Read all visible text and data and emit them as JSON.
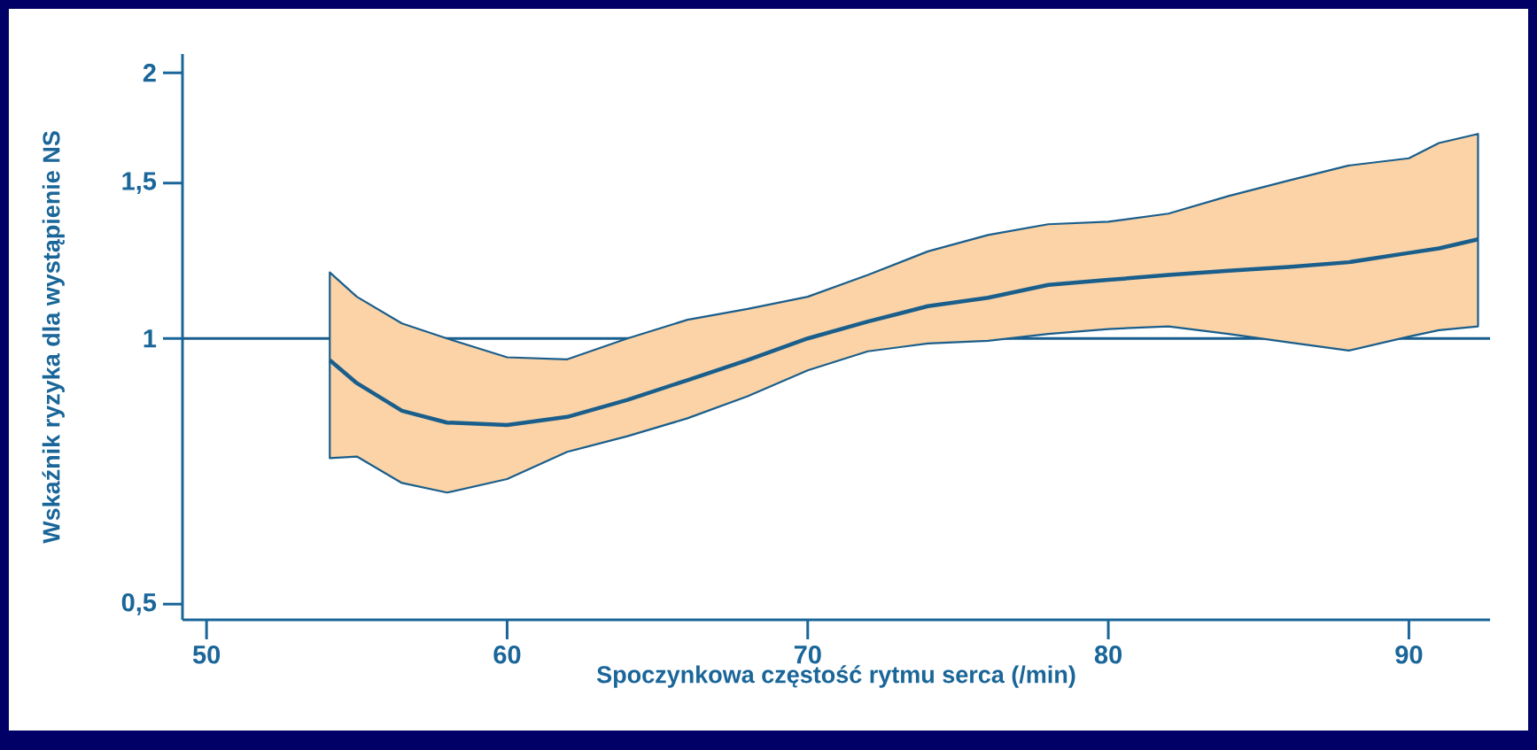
{
  "chart_data": {
    "type": "line",
    "xlabel": "Spoczynkowa częstość rytmu serca (/min)",
    "ylabel": "Wskaźnik ryzyka dla wystąpienie NS",
    "x": [
      54.1,
      55,
      56.5,
      58,
      60,
      62,
      64,
      66,
      68,
      70,
      72,
      74,
      76,
      78,
      80,
      82,
      84,
      86,
      88,
      90,
      91,
      92.3
    ],
    "series": [
      {
        "color": "#1a5e8c",
        "values": [
          0.945,
          0.89,
          0.828,
          0.803,
          0.798,
          0.815,
          0.852,
          0.897,
          0.945,
          1.0,
          1.045,
          1.088,
          1.112,
          1.15,
          1.165,
          1.18,
          1.193,
          1.205,
          1.22,
          1.25,
          1.265,
          1.295
        ],
        "lower": [
          0.732,
          0.735,
          0.686,
          0.669,
          0.693,
          0.744,
          0.775,
          0.812,
          0.86,
          0.92,
          0.967,
          0.987,
          0.994,
          1.012,
          1.025,
          1.032,
          1.012,
          0.99,
          0.969,
          1.005,
          1.022,
          1.032
        ],
        "upper": [
          1.188,
          1.115,
          1.04,
          1.0,
          0.952,
          0.947,
          1.0,
          1.05,
          1.08,
          1.115,
          1.18,
          1.255,
          1.31,
          1.347,
          1.356,
          1.385,
          1.45,
          1.51,
          1.57,
          1.6,
          1.665,
          1.705
        ]
      }
    ],
    "xlim": [
      49.2,
      92.7
    ],
    "xticks": [
      50,
      60,
      70,
      80,
      90
    ],
    "ylim": [
      0.48,
      2.1
    ],
    "log": "y",
    "yticks": [
      {
        "value": 0.5,
        "label": "0,5"
      },
      {
        "value": 1,
        "label": "1"
      },
      {
        "value": 1.5,
        "label": "1,5"
      },
      {
        "value": 2,
        "label": "2"
      }
    ],
    "ref_lines": [
      {
        "axis": "y",
        "value": 1,
        "color": "#1a5e8c"
      }
    ],
    "grid": false
  }
}
